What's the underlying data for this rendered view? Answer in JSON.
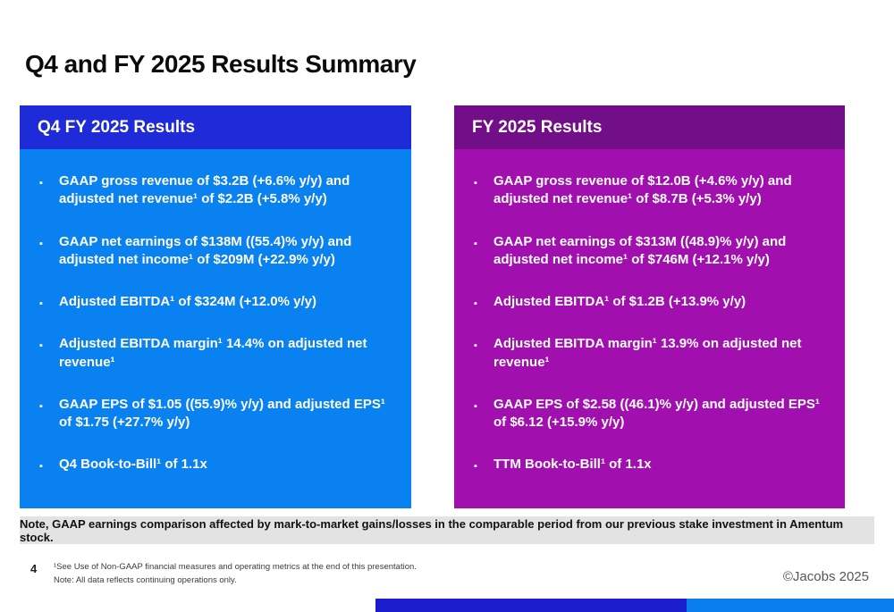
{
  "slide": {
    "title": "Q4 and FY 2025 Results Summary",
    "page_number": "4",
    "copyright": "©Jacobs 2025"
  },
  "panels": {
    "left": {
      "header": "Q4 FY 2025 Results",
      "header_color": "#1F2BD9",
      "body_color": "#0A81F1",
      "bullets": [
        "GAAP gross revenue of $3.2B (+6.6% y/y) and adjusted net revenue¹ of $2.2B (+5.8% y/y)",
        "GAAP net earnings of $138M ((55.4)% y/y) and adjusted net income¹ of $209M (+22.9% y/y)",
        "Adjusted EBITDA¹ of $324M (+12.0% y/y)",
        "Adjusted EBITDA margin¹ 14.4% on adjusted net revenue¹",
        "GAAP EPS of $1.05 ((55.9)% y/y) and adjusted EPS¹ of $1.75 (+27.7% y/y)",
        "Q4 Book-to-Bill¹ of 1.1x"
      ]
    },
    "right": {
      "header": "FY 2025 Results",
      "header_color": "#720E87",
      "body_color": "#A110AF",
      "bullets": [
        "GAAP gross revenue of $12.0B (+4.6% y/y) and adjusted net revenue¹ of $8.7B (+5.3% y/y)",
        "GAAP net earnings of $313M ((48.9)% y/y) and adjusted net income¹ of $746M (+12.1% y/y)",
        "Adjusted EBITDA¹ of $1.2B (+13.9% y/y)",
        "Adjusted EBITDA margin¹ 13.9% on adjusted net revenue¹",
        "GAAP EPS of $2.58 ((46.1)% y/y) and adjusted EPS¹ of $6.12 (+15.9% y/y)",
        "TTM Book-to-Bill¹ of 1.1x"
      ]
    }
  },
  "note_banner": "Note, GAAP earnings comparison affected by mark-to-market gains/losses in the comparable period from our previous stake investment in Amentum stock.",
  "footnotes": [
    "¹See Use of Non-GAAP financial measures and operating metrics at the end of this presentation.",
    "Note: All data reflects continuing operations only."
  ],
  "footer_bars": {
    "dark_color": "#1B1CCB",
    "blue_color": "#0A7DF0"
  }
}
